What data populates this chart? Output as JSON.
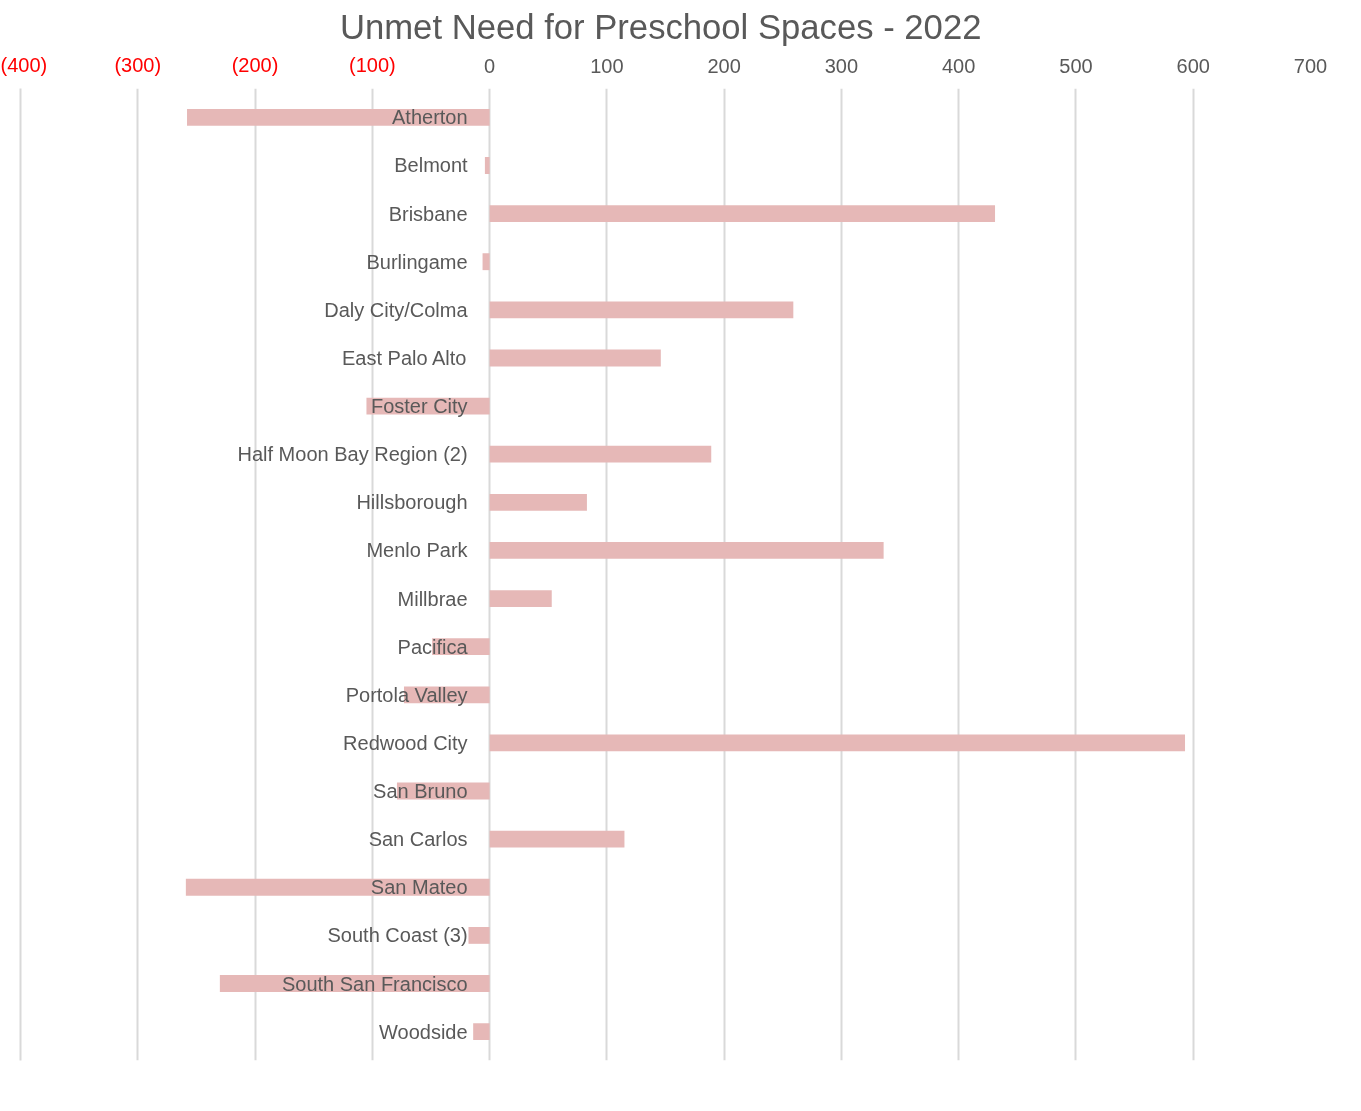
{
  "chart_data": {
    "type": "bar",
    "orientation": "horizontal",
    "title": "Unmet Need for Preschool Spaces  - 2022",
    "categories": [
      "Atherton",
      "Belmont",
      "Brisbane",
      "Burlingame",
      "Daly City/Colma",
      "East Palo Alto",
      "Foster City",
      "Half Moon Bay Region (2)",
      "Hillsborough",
      "Menlo Park",
      "Millbrae",
      "Pacifica",
      "Portola Valley",
      "Redwood City",
      "San Bruno",
      "San Carlos",
      "San Mateo",
      "South Coast (3)",
      "South San Francisco",
      "Woodside"
    ],
    "values": [
      -258,
      -4,
      431,
      -6,
      259,
      146,
      -105,
      189,
      83,
      336,
      53,
      -49,
      -73,
      593,
      -79,
      115,
      -259,
      -18,
      -230,
      -14
    ],
    "color": "#e6b8b7",
    "xlim": [
      -400,
      700
    ],
    "xticks": [
      {
        "value": -400,
        "label": "(400)"
      },
      {
        "value": -300,
        "label": "(300)"
      },
      {
        "value": -200,
        "label": "(200)"
      },
      {
        "value": -100,
        "label": "(100)"
      },
      0,
      100,
      200,
      300,
      400,
      500,
      600,
      700
    ],
    "grid": "x"
  }
}
